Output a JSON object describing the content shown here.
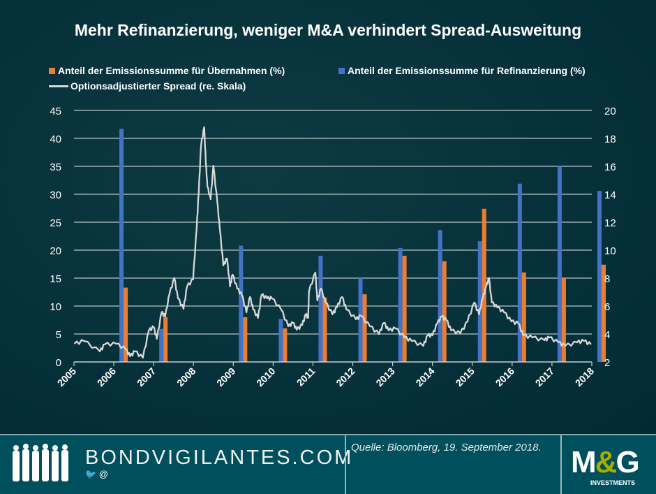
{
  "chart_data": {
    "type": "bar+line",
    "title": "Mehr Refinanzierung, weniger M&A verhindert Spread-Ausweitung",
    "categories": [
      "2006",
      "2007",
      "2009",
      "2010",
      "2011",
      "2012",
      "2013",
      "2014",
      "2015",
      "2016",
      "2017",
      "2018"
    ],
    "series": [
      {
        "name": "Anteil der Emissionssumme für Refinanzierung (%)",
        "axis": "left",
        "color": "#4472c4",
        "values": [
          41.7,
          5.9,
          20.8,
          7.7,
          19.0,
          15.0,
          20.4,
          23.6,
          21.6,
          31.9,
          35.0,
          30.6
        ]
      },
      {
        "name": "Anteil der Emissionssumme für Übernahmen (%)",
        "axis": "left",
        "color": "#ed7d31",
        "values": [
          13.3,
          8.0,
          8.0,
          6.0,
          11.5,
          12.1,
          19.0,
          18.0,
          27.4,
          16.0,
          15.0,
          17.4
        ]
      },
      {
        "name": "Optionsadjustierter Spread (re. Skala)",
        "axis": "right",
        "color": "#d9d9d9",
        "type": "line",
        "x": [
          2005.01,
          2005.25,
          2005.65,
          2005.77,
          2006.06,
          2006.3,
          2006.41,
          2006.53,
          2006.73,
          2006.88,
          2007.0,
          2007.08,
          2007.2,
          2007.29,
          2007.4,
          2007.52,
          2007.61,
          2007.75,
          2007.84,
          2007.99,
          2008.08,
          2008.13,
          2008.19,
          2008.27,
          2008.31,
          2008.35,
          2008.43,
          2008.5,
          2008.6,
          2008.66,
          2008.75,
          2008.84,
          2008.92,
          2008.98,
          2009.1,
          2009.22,
          2009.33,
          2009.42,
          2009.5,
          2009.62,
          2009.71,
          2009.85,
          2009.97,
          2010.2,
          2010.38,
          2010.5,
          2010.59,
          2010.73,
          2010.82,
          2010.88,
          2010.9,
          2011.06,
          2011.11,
          2011.2,
          2011.32,
          2011.49,
          2011.6,
          2011.73,
          2011.84,
          2012.08,
          2012.2,
          2012.43,
          2012.66,
          2012.78,
          2012.9,
          2013.07,
          2013.3,
          2013.48,
          2013.77,
          2013.88,
          2014.0,
          2014.12,
          2014.23,
          2014.35,
          2014.47,
          2014.7,
          2014.88,
          2015.05,
          2015.17,
          2015.26,
          2015.35,
          2015.42,
          2015.49,
          2015.63,
          2015.8,
          2015.98,
          2016.16,
          2016.28,
          2016.51,
          2016.81,
          2016.93,
          2017.16,
          2017.33,
          2017.63,
          2017.8,
          2017.98
        ],
        "values": [
          3.3,
          3.5,
          2.75,
          3.25,
          3.3,
          2.9,
          2.4,
          2.75,
          2.3,
          4.25,
          4.5,
          3.65,
          5.55,
          5.25,
          6.9,
          8.0,
          6.55,
          5.8,
          7.4,
          7.9,
          11.55,
          14.05,
          17.5,
          18.8,
          16.25,
          14.55,
          13.65,
          16.05,
          13.4,
          11.55,
          8.9,
          9.4,
          7.4,
          8.25,
          7.25,
          6.75,
          5.55,
          6.65,
          5.75,
          5.15,
          6.8,
          6.55,
          6.55,
          5.75,
          4.55,
          4.8,
          4.3,
          4.65,
          5.4,
          5.15,
          7.05,
          8.4,
          6.4,
          7.25,
          6.25,
          5.4,
          5.9,
          6.65,
          5.75,
          5.05,
          5.3,
          4.55,
          4.0,
          4.8,
          4.25,
          4.4,
          3.75,
          3.5,
          3.15,
          3.9,
          3.9,
          4.75,
          5.25,
          5.0,
          4.25,
          4.05,
          4.9,
          6.25,
          5.4,
          6.55,
          7.4,
          8.0,
          6.25,
          5.9,
          5.55,
          4.9,
          4.75,
          3.9,
          3.75,
          3.55,
          3.75,
          3.4,
          3.15,
          3.4,
          3.5,
          3.25
        ]
      }
    ],
    "x_ticks": [
      "2005",
      "2006",
      "2007",
      "2008",
      "2009",
      "2010",
      "2011",
      "2012",
      "2013",
      "2014",
      "2015",
      "2016",
      "2017",
      "2018"
    ],
    "y_left_ticks": [
      "0",
      "5",
      "10",
      "15",
      "20",
      "25",
      "30",
      "35",
      "40",
      "45"
    ],
    "y_right_ticks": [
      "2",
      "4",
      "6",
      "8",
      "10",
      "12",
      "14",
      "16",
      "18",
      "20"
    ],
    "ylim_left": [
      0,
      45
    ],
    "ylim_right": [
      2,
      20
    ],
    "xlim": [
      2005,
      2018
    ],
    "grid": "horizontal",
    "legend_placement": "top"
  },
  "footer": {
    "brand": "BONDVIGILANTES.COM",
    "social": "🐦 @",
    "source": "Quelle: Bloomberg, 19. September 2018.",
    "logo_text": "M&G",
    "logo_sub": "INVESTMENTS"
  }
}
